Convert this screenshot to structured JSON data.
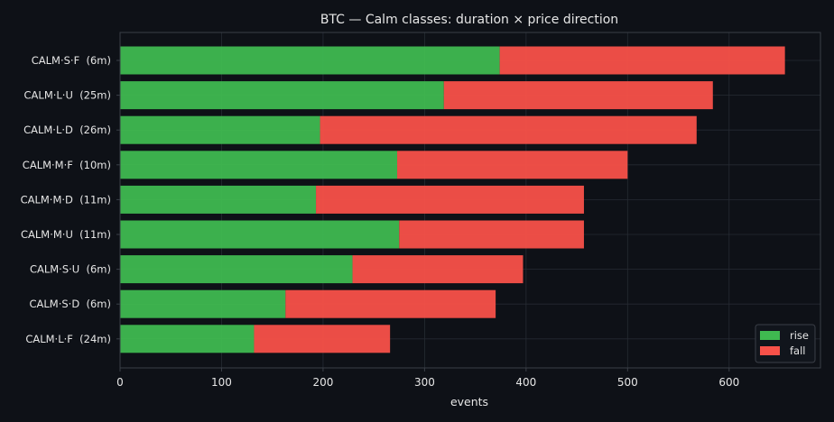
{
  "chart_data": {
    "type": "bar",
    "orientation": "horizontal",
    "stacked": true,
    "title": "BTC — Calm classes: duration × price direction",
    "xlabel": "events",
    "ylabel": "",
    "xlim": [
      0,
      690
    ],
    "xticks": [
      0,
      100,
      200,
      300,
      400,
      500,
      600
    ],
    "grid": true,
    "legend_position": "bottom-right",
    "categories": [
      "CALM·S·F  (6m)",
      "CALM·L·U  (25m)",
      "CALM·L·D  (26m)",
      "CALM·M·F  (10m)",
      "CALM·M·D  (11m)",
      "CALM·M·U  (11m)",
      "CALM·S·U  (6m)",
      "CALM·S·D  (6m)",
      "CALM·L·F  (24m)"
    ],
    "series": [
      {
        "name": "rise",
        "color": "#3fb950",
        "values": [
          374,
          319,
          197,
          273,
          193,
          275,
          229,
          163,
          132
        ]
      },
      {
        "name": "fall",
        "color": "#f85149",
        "values": [
          281,
          265,
          371,
          227,
          264,
          182,
          168,
          207,
          134
        ]
      }
    ]
  },
  "colors": {
    "background": "#0e1117",
    "axes_frame": "#3a3f47",
    "grid": "#262b33",
    "text": "#e6e6e6"
  }
}
